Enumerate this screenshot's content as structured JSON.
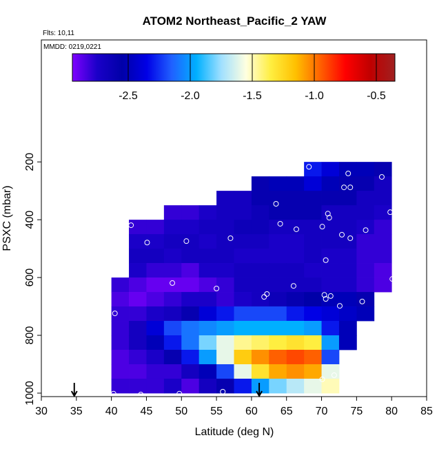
{
  "chart_data": {
    "type": "heatmap",
    "title": "ATOM2 Northeast_Pacific_2 YAW",
    "annotations": [
      "Flts: 10,11",
      "MMDD: 0219,0221"
    ],
    "x_label": "Latitude (deg N)",
    "y_label": "PSXC (mbar)",
    "x_edges": [
      40,
      42.5,
      45,
      47.5,
      50,
      52.5,
      55,
      57.5,
      60,
      62.5,
      65,
      67.5,
      70,
      72.5,
      75,
      77.5,
      80
    ],
    "y_edges": [
      200,
      250,
      300,
      350,
      400,
      450,
      500,
      550,
      600,
      650,
      700,
      750,
      800,
      850,
      900,
      950,
      1000
    ],
    "z": [
      [
        null,
        null,
        null,
        null,
        null,
        null,
        null,
        null,
        null,
        null,
        null,
        -2.3,
        -2.4,
        -2.5,
        -2.5,
        -2.6
      ],
      [
        null,
        null,
        null,
        null,
        null,
        null,
        null,
        null,
        -2.6,
        -2.5,
        -2.5,
        -2.4,
        -2.5,
        -2.6,
        -2.6,
        -2.7
      ],
      [
        null,
        null,
        null,
        null,
        null,
        null,
        -2.7,
        -2.7,
        -2.6,
        -2.6,
        -2.6,
        -2.6,
        -2.6,
        -2.6,
        -2.7,
        -2.7
      ],
      [
        null,
        null,
        null,
        -2.8,
        -2.8,
        -2.75,
        -2.7,
        -2.7,
        -2.65,
        -2.6,
        -2.6,
        -2.6,
        -2.7,
        -2.7,
        -2.7,
        -2.75
      ],
      [
        null,
        -2.8,
        -2.8,
        -2.75,
        -2.75,
        -2.7,
        -2.7,
        -2.65,
        -2.65,
        -2.7,
        -2.7,
        -2.7,
        -2.7,
        -2.7,
        -2.75,
        -2.8
      ],
      [
        null,
        -2.75,
        -2.75,
        -2.7,
        -2.7,
        -2.75,
        -2.7,
        -2.7,
        -2.7,
        -2.75,
        -2.75,
        -2.7,
        -2.7,
        -2.7,
        -2.8,
        -2.8
      ],
      [
        null,
        -2.7,
        -2.7,
        -2.75,
        -2.7,
        -2.7,
        -2.7,
        -2.75,
        -2.75,
        -2.75,
        -2.75,
        -2.7,
        -2.75,
        -2.75,
        -2.8,
        -2.8
      ],
      [
        null,
        -2.75,
        -2.8,
        -2.8,
        -2.85,
        -2.75,
        -2.75,
        -2.7,
        -2.7,
        -2.7,
        -2.7,
        -2.75,
        -2.75,
        -2.75,
        -2.8,
        -2.85
      ],
      [
        -2.8,
        -2.85,
        -2.9,
        -2.9,
        -2.9,
        -2.85,
        -2.8,
        -2.7,
        -2.7,
        -2.7,
        -2.7,
        -2.7,
        -2.75,
        -2.75,
        -2.8,
        -2.85
      ],
      [
        -2.85,
        -2.9,
        -2.85,
        -2.8,
        -2.75,
        -2.75,
        -2.8,
        -2.75,
        -2.7,
        -2.65,
        -2.6,
        -2.55,
        -2.5,
        -2.5,
        -2.6,
        null
      ],
      [
        -2.8,
        -2.8,
        -2.75,
        -2.7,
        -2.6,
        -2.4,
        -2.3,
        -2.2,
        -2.2,
        -2.2,
        -2.3,
        -2.35,
        -2.4,
        -2.45,
        -2.5,
        null
      ],
      [
        -2.8,
        -2.7,
        -2.4,
        -2.2,
        -2.1,
        -2.05,
        -2.0,
        -1.95,
        -1.95,
        -1.95,
        -1.95,
        -2.0,
        -2.3,
        -2.5,
        null,
        null
      ],
      [
        -2.8,
        -2.7,
        -2.5,
        -2.3,
        -2.1,
        -1.8,
        -1.6,
        -1.45,
        -1.4,
        -1.35,
        -1.3,
        -1.35,
        -2.0,
        -2.5,
        null,
        null
      ],
      [
        -2.85,
        -2.8,
        -2.75,
        -2.6,
        -2.3,
        -2.0,
        -1.6,
        -1.2,
        -1.05,
        -0.95,
        -0.9,
        -0.95,
        -2.2,
        null,
        null,
        null
      ],
      [
        -2.85,
        -2.85,
        -2.8,
        -2.8,
        -2.7,
        -2.5,
        -2.2,
        -1.6,
        -1.3,
        -1.1,
        -1.05,
        -1.1,
        -1.6,
        null,
        null,
        null
      ],
      [
        -2.8,
        -2.8,
        -2.8,
        -2.75,
        -2.85,
        -2.7,
        -2.6,
        -2.3,
        -2.0,
        -1.8,
        -1.7,
        -1.6,
        -1.5,
        null,
        null,
        null
      ]
    ],
    "xlim": [
      30,
      85
    ],
    "ylim": [
      1012,
      -222
    ],
    "xticks": [
      30,
      35,
      40,
      45,
      50,
      55,
      60,
      65,
      70,
      75,
      80,
      85
    ],
    "yticks": [
      200,
      400,
      600,
      800,
      1000
    ],
    "colorbar": {
      "lim": [
        -2.95,
        -0.35
      ],
      "ticks": [
        -2.5,
        {
          "value": -2.0,
          "label": "-2.0"
        },
        -1.5,
        {
          "value": -1.0,
          "label": "-1.0"
        },
        -0.5
      ],
      "colors": [
        "#7f00ff",
        "#1a00c8",
        "#0000a8",
        "#0000e6",
        "#2060ff",
        "#00b0ff",
        "#a0e0ff",
        "#ffffe0",
        "#ffee40",
        "#ffc000",
        "#ff6000",
        "#ff0000",
        "#c00000",
        "#a02020"
      ]
    },
    "points": {
      "color": "#ffffff",
      "x": [
        68.2,
        73.8,
        78.6,
        73.2,
        74.1,
        63.5,
        70.9,
        79.8,
        71.1,
        42.8,
        64.1,
        70.1,
        66.4,
        76.3,
        72.9,
        74.1,
        57.0,
        45.1,
        50.7,
        70.6,
        48.7,
        80.1,
        55.0,
        66.0,
        62.2,
        61.8,
        70.4,
        70.6,
        71.3,
        75.8,
        72.6,
        40.5,
        70.1,
        71.8,
        40.3,
        44.2,
        49.7,
        55.9
      ],
      "y": [
        217,
        240,
        252,
        288,
        288,
        345,
        379,
        374,
        393,
        419,
        414,
        424,
        433,
        436,
        452,
        464,
        464,
        479,
        474,
        540,
        619,
        605,
        638,
        629,
        657,
        667,
        660,
        674,
        664,
        683,
        698,
        724,
        952,
        938,
        1002,
        1005,
        1002,
        995
      ]
    },
    "arrows_x": [
      34.7,
      61.1
    ]
  }
}
